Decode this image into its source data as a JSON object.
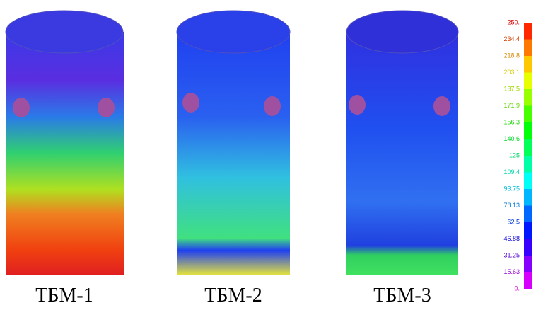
{
  "panels": [
    {
      "label": "ТБМ-1"
    },
    {
      "label": "ТБМ-2"
    },
    {
      "label": "ТБМ-3"
    }
  ],
  "colorbar": {
    "labels": [
      "250.",
      "234.4",
      "218.8",
      "203.1",
      "187.5",
      "171.9",
      "156.3",
      "140.6",
      "125",
      "109.4",
      "93.75",
      "78.13",
      "62.5",
      "46.88",
      "31.25",
      "15.63",
      "0."
    ]
  }
}
